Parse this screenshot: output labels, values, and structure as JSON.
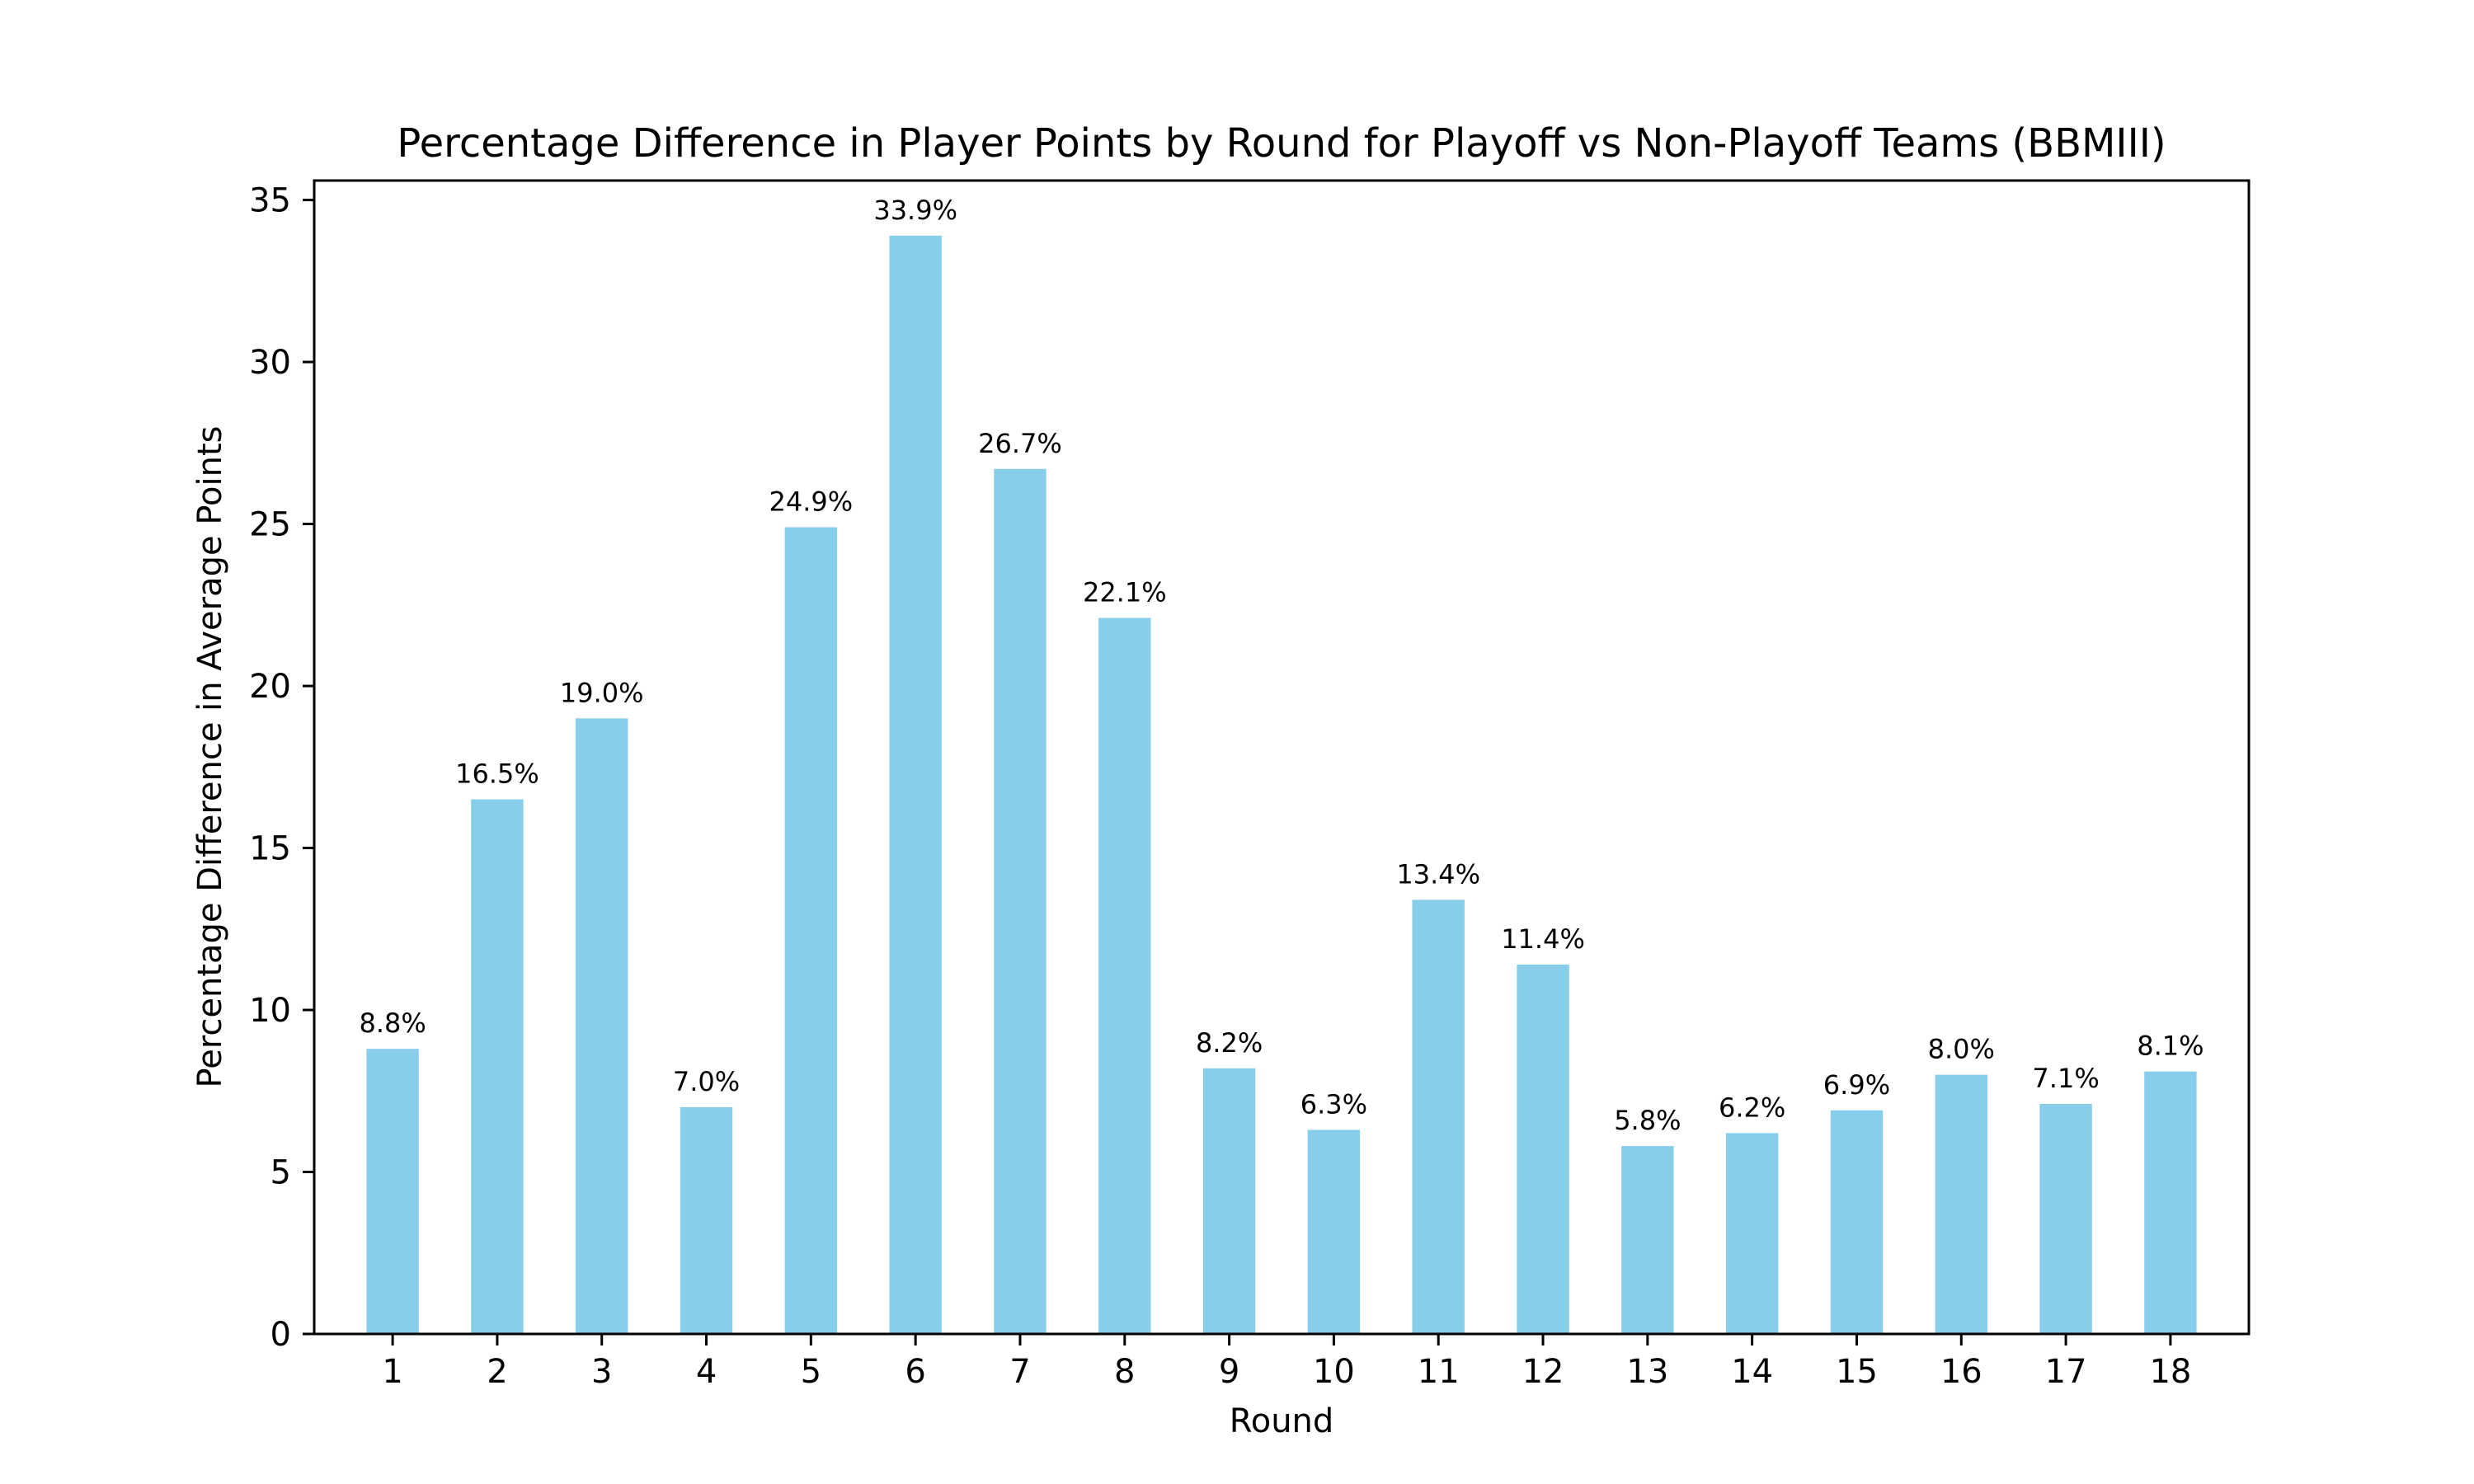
{
  "chart_data": {
    "type": "bar",
    "title": "Percentage Difference in Player Points by Round for Playoff vs Non-Playoff Teams (BBMIII)",
    "xlabel": "Round",
    "ylabel": "Percentage Difference in Average Points",
    "categories": [
      "1",
      "2",
      "3",
      "4",
      "5",
      "6",
      "7",
      "8",
      "9",
      "10",
      "11",
      "12",
      "13",
      "14",
      "15",
      "16",
      "17",
      "18"
    ],
    "values": [
      8.8,
      16.5,
      19.0,
      7.0,
      24.9,
      33.9,
      26.7,
      22.1,
      8.2,
      6.3,
      13.4,
      11.4,
      5.8,
      6.2,
      6.9,
      8.0,
      7.1,
      8.1
    ],
    "data_labels": [
      "8.8%",
      "16.5%",
      "19.0%",
      "7.0%",
      "24.9%",
      "33.9%",
      "26.7%",
      "22.1%",
      "8.2%",
      "6.3%",
      "13.4%",
      "11.4%",
      "5.8%",
      "6.2%",
      "6.9%",
      "8.0%",
      "7.1%",
      "8.1%"
    ],
    "ylim": [
      0,
      35.6
    ],
    "yticks": [
      0,
      5,
      10,
      15,
      20,
      25,
      30,
      35
    ],
    "ytick_labels": [
      "0",
      "5",
      "10",
      "15",
      "20",
      "25",
      "30",
      "35"
    ],
    "bar_color": "#87CEEB",
    "grid": false,
    "legend": "none"
  }
}
